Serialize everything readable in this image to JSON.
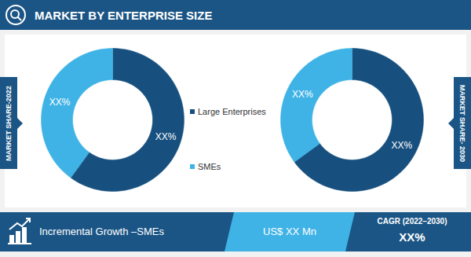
{
  "header": {
    "title": "MARKET BY ENTERPRISE SIZE"
  },
  "chart_data": [
    {
      "type": "pie",
      "title": "MARKET SHARE-2022",
      "categories": [
        "Large Enterprises",
        "SMEs"
      ],
      "values": [
        60,
        40
      ],
      "value_labels": [
        "XX%",
        "XX%"
      ],
      "colors": [
        "#17507f",
        "#3fb3e6"
      ],
      "data_labels": true,
      "legend": "right"
    },
    {
      "type": "pie",
      "title": "MARKET SHARE- 2030",
      "categories": [
        "Large Enterprises",
        "SMEs"
      ],
      "values": [
        65,
        35
      ],
      "value_labels": [
        "XX%",
        "XX%"
      ],
      "colors": [
        "#17507f",
        "#3fb3e6"
      ],
      "data_labels": true
    }
  ],
  "footer": {
    "label": "Incremental Growth –SMEs",
    "value": "US$ XX Mn",
    "cagr_label": "CAGR (2022–2030)",
    "cagr_value": "XX%"
  }
}
